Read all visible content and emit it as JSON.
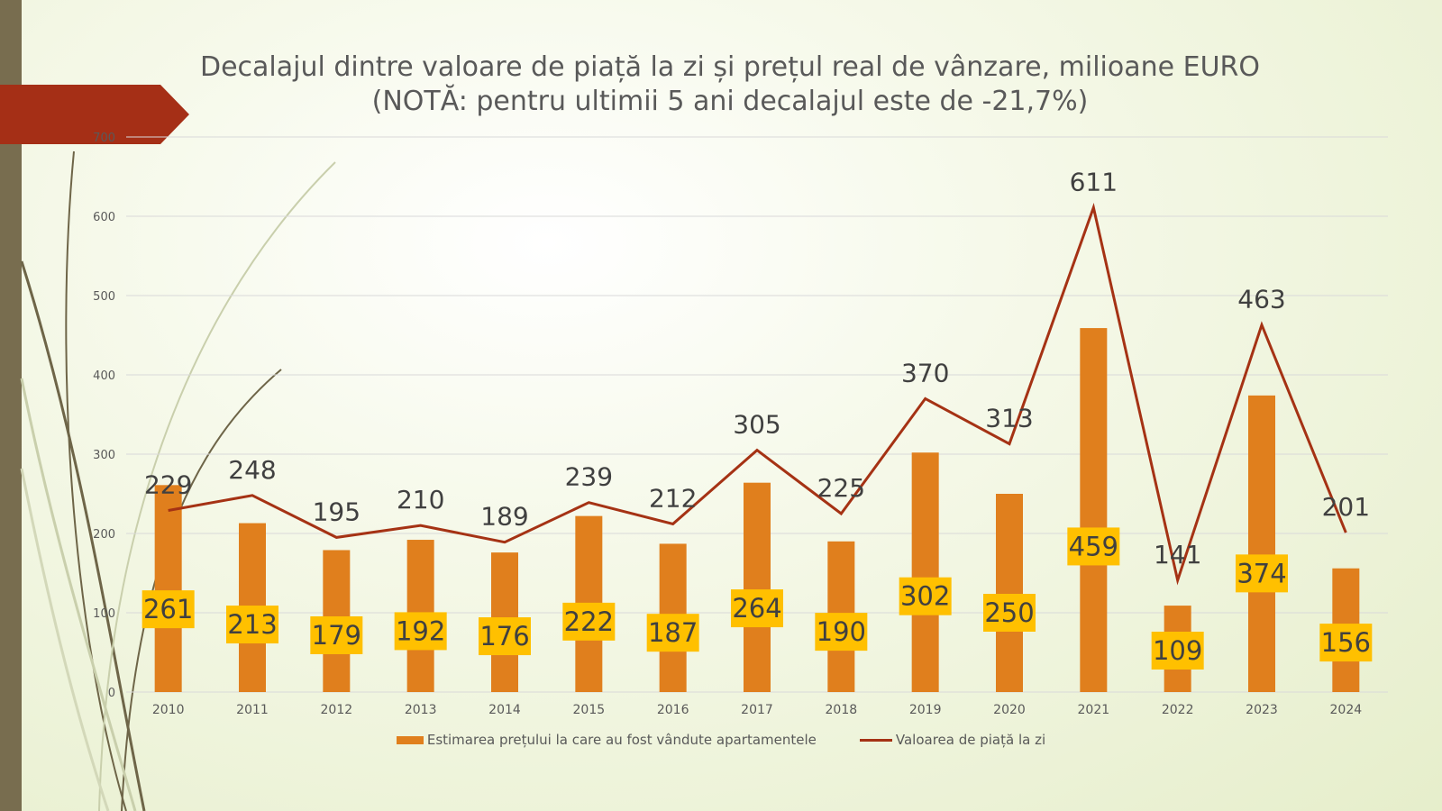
{
  "colors": {
    "bar": "#e07f1d",
    "line": "#a53214",
    "label_box": "#ffc000",
    "accent_arrow": "#a52f16",
    "side_strip": "#786d4f",
    "grid": "#d9d9d9",
    "axis_text": "#595959"
  },
  "title": {
    "line1": "Decalajul dintre valoare de piață la zi și prețul real de vânzare, milioane EURO",
    "line2": "(NOTĂ: pentru ultimii 5 ani decalajul este de -21,7%)"
  },
  "chart_data": {
    "type": "bar",
    "categories": [
      "2010",
      "2011",
      "2012",
      "2013",
      "2014",
      "2015",
      "2016",
      "2017",
      "2018",
      "2019",
      "2020",
      "2021",
      "2022",
      "2023",
      "2024"
    ],
    "series": [
      {
        "name": "Estimarea prețului la care au fost vândute apartamentele",
        "type": "bar",
        "values": [
          261,
          213,
          179,
          192,
          176,
          222,
          187,
          264,
          190,
          302,
          250,
          459,
          109,
          374,
          156
        ]
      },
      {
        "name": "Valoarea de piață la zi",
        "type": "line",
        "values": [
          229,
          248,
          195,
          210,
          189,
          239,
          212,
          305,
          225,
          370,
          313,
          611,
          141,
          463,
          201
        ]
      }
    ],
    "yticks": [
      "0",
      "100",
      "200",
      "300",
      "400",
      "500",
      "600",
      "700"
    ],
    "ylim": [
      0,
      700
    ],
    "grid": true,
    "legend_position": "bottom"
  }
}
